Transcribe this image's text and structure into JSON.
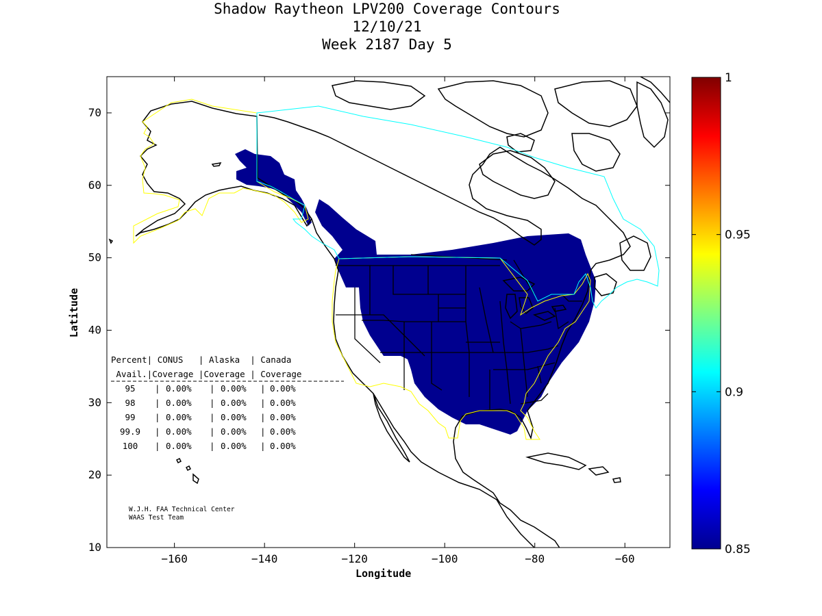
{
  "title": {
    "line1": "Shadow Raytheon LPV200 Coverage Contours",
    "line2": "12/10/21",
    "line3": "Week 2187 Day 5"
  },
  "axes": {
    "xlabel": "Longitude",
    "ylabel": "Latitude",
    "xlim": [
      -175,
      -50
    ],
    "ylim": [
      10,
      75
    ],
    "xticks": [
      -160,
      -140,
      -120,
      -100,
      -80,
      -60
    ],
    "yticks": [
      10,
      20,
      30,
      40,
      50,
      60,
      70
    ]
  },
  "colorbar": {
    "range": [
      0.85,
      1.0
    ],
    "ticks": [
      {
        "value": 1,
        "label": "1"
      },
      {
        "value": 0.95,
        "label": "0.95"
      },
      {
        "value": 0.9,
        "label": "0.9"
      },
      {
        "value": 0.85,
        "label": "0.85"
      }
    ]
  },
  "table": {
    "header1": "Percent| CONUS   | Alaska  | Canada",
    "header2": " Avail.|Coverage |Coverage | Coverage",
    "rows": [
      {
        "pct": "95",
        "conus": "0.00%",
        "alaska": "0.00%",
        "canada": "0.00%"
      },
      {
        "pct": "98",
        "conus": "0.00%",
        "alaska": "0.00%",
        "canada": "0.00%"
      },
      {
        "pct": "99",
        "conus": "0.00%",
        "alaska": "0.00%",
        "canada": "0.00%"
      },
      {
        "pct": "99.9",
        "conus": "0.00%",
        "alaska": "0.00%",
        "canada": "0.00%"
      },
      {
        "pct": "100",
        "conus": "0.00%",
        "alaska": "0.00%",
        "canada": "0.00%"
      }
    ]
  },
  "credits": {
    "line1": "W.J.H. FAA Technical Center",
    "line2": "WAAS Test Team"
  },
  "colors": {
    "coverage": "#00008f",
    "region_conus_alaska": "#ffff00",
    "region_canada": "#00ffff",
    "coastline": "#000000"
  }
}
